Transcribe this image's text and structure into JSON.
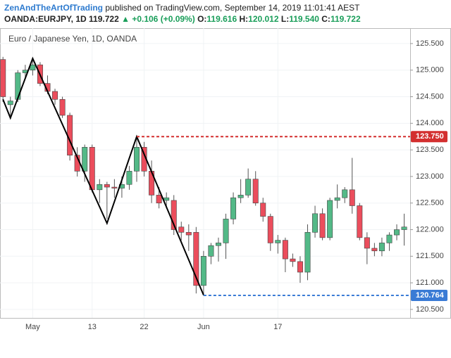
{
  "header": {
    "author": "ZenAndTheArtOfTrading",
    "published": "published on TradingView.com, September 14, 2019 11:01:41 AEST",
    "symbol": "OANDA:EURJPY, 1D",
    "last": "119.722",
    "change": "▲ +0.106 (+0.09%)",
    "ohlc": [
      {
        "key": "O:",
        "value": "119.616"
      },
      {
        "key": "H:",
        "value": "120.012"
      },
      {
        "key": "L:",
        "value": "119.540"
      },
      {
        "key": "C:",
        "value": "119.722"
      }
    ]
  },
  "chart_data": {
    "type": "candlestick",
    "title": "Euro / Japanese Yen, 1D, OANDA",
    "categories": [
      null,
      null,
      null,
      null,
      "May",
      null,
      null,
      null,
      null,
      null,
      null,
      null,
      "13",
      null,
      null,
      null,
      null,
      null,
      null,
      "22",
      null,
      null,
      null,
      null,
      null,
      null,
      null,
      "Jun",
      null,
      null,
      null,
      null,
      null,
      null,
      null,
      null,
      null,
      "17",
      null,
      null,
      null,
      null,
      null,
      null,
      null,
      null,
      null,
      null,
      null,
      null,
      null,
      null,
      null,
      null,
      null
    ],
    "open": [
      125.2,
      124.35,
      124.45,
      124.95,
      125.0,
      125.1,
      124.75,
      124.6,
      124.45,
      124.15,
      123.4,
      123.1,
      123.55,
      122.75,
      122.85,
      122.8,
      122.78,
      122.85,
      123.1,
      123.55,
      123.1,
      122.65,
      122.55,
      122.55,
      122.05,
      121.95,
      121.95,
      120.95,
      121.5,
      121.7,
      121.75,
      122.2,
      122.6,
      122.65,
      122.95,
      122.5,
      122.25,
      121.75,
      121.8,
      121.45,
      121.4,
      121.2,
      121.95,
      122.3,
      121.85,
      122.55,
      122.6,
      122.75,
      122.45,
      121.85,
      121.65,
      121.6,
      121.75,
      121.9,
      122.0
    ],
    "high": [
      125.25,
      124.5,
      125.0,
      125.1,
      125.2,
      125.15,
      124.9,
      124.65,
      124.5,
      124.2,
      123.55,
      123.6,
      123.6,
      122.95,
      122.9,
      122.95,
      123.0,
      123.2,
      123.75,
      123.65,
      123.3,
      122.8,
      122.7,
      122.65,
      122.15,
      122.1,
      122.05,
      121.6,
      121.75,
      121.85,
      122.3,
      122.7,
      122.95,
      123.15,
      123.1,
      122.6,
      122.3,
      121.9,
      121.85,
      121.55,
      121.5,
      122.1,
      122.45,
      122.4,
      122.6,
      122.85,
      122.8,
      123.35,
      122.5,
      121.95,
      121.75,
      121.85,
      121.95,
      122.1,
      122.3
    ],
    "low": [
      124.4,
      124.1,
      124.4,
      124.85,
      124.9,
      124.7,
      124.55,
      124.35,
      124.1,
      123.3,
      123.0,
      122.9,
      122.7,
      122.5,
      122.2,
      122.6,
      122.6,
      122.75,
      122.9,
      123.0,
      122.5,
      122.4,
      122.4,
      121.9,
      121.8,
      121.6,
      120.8,
      120.76,
      121.35,
      121.4,
      121.45,
      122.1,
      122.5,
      122.6,
      122.45,
      122.15,
      121.6,
      121.55,
      121.2,
      121.3,
      121.0,
      121.05,
      121.85,
      121.8,
      121.8,
      122.4,
      122.5,
      122.3,
      121.8,
      121.35,
      121.5,
      121.5,
      121.6,
      121.8,
      121.7
    ],
    "close": [
      124.5,
      124.42,
      124.95,
      125.0,
      125.1,
      124.75,
      124.6,
      124.45,
      124.15,
      123.4,
      123.1,
      123.55,
      122.75,
      122.85,
      122.8,
      122.78,
      122.85,
      123.1,
      123.55,
      123.1,
      122.65,
      122.5,
      122.6,
      122.0,
      121.95,
      121.9,
      120.95,
      121.5,
      121.7,
      121.75,
      122.2,
      122.6,
      122.65,
      122.95,
      122.5,
      122.25,
      121.75,
      121.8,
      121.45,
      121.4,
      121.2,
      121.95,
      122.3,
      121.85,
      122.55,
      122.6,
      122.75,
      122.45,
      121.85,
      121.65,
      121.6,
      121.75,
      121.9,
      122.0,
      122.05
    ],
    "up_color": "#53b987",
    "down_color": "#eb4d5c",
    "ylim": [
      120.34,
      125.79
    ],
    "yticks": [
      {
        "value": 120.5,
        "label": "120.500"
      },
      {
        "value": 121,
        "label": "121.000"
      },
      {
        "value": 121.5,
        "label": "121.500"
      },
      {
        "value": 122,
        "label": "122.000"
      },
      {
        "value": 122.5,
        "label": "122.500"
      },
      {
        "value": 123,
        "label": "123.000"
      },
      {
        "value": 123.5,
        "label": "123.500"
      },
      {
        "value": 124,
        "label": "124.000"
      },
      {
        "value": 124.5,
        "label": "124.500"
      },
      {
        "value": 125,
        "label": "125.000"
      },
      {
        "value": 125.5,
        "label": "125.500"
      }
    ],
    "grid": true,
    "zigzag": {
      "color": "#000000",
      "index": [
        0,
        1,
        4,
        14,
        18,
        27
      ],
      "values": [
        124.45,
        124.1,
        125.22,
        122.12,
        123.75,
        120.77
      ]
    },
    "levels": [
      {
        "value": 123.75,
        "label": "123.750",
        "color": "#d32f2f",
        "start": 18
      },
      {
        "value": 120.764,
        "label": "120.764",
        "color": "#3a7bd5",
        "start": 27
      }
    ]
  }
}
